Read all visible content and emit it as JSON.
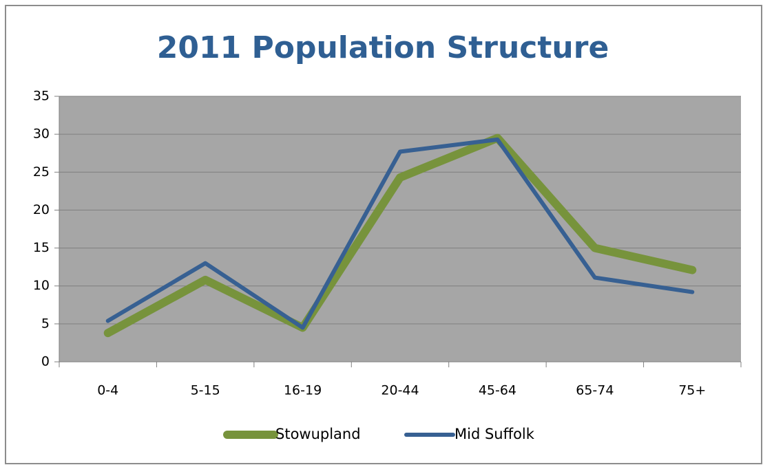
{
  "chart_data": {
    "type": "line",
    "title": "2011 Population Structure",
    "categories": [
      "0-4",
      "5-15",
      "16-19",
      "20-44",
      "45-64",
      "65-74",
      "75+"
    ],
    "series": [
      {
        "name": "Stowupland",
        "color": "#77933c",
        "values": [
          3.8,
          10.8,
          4.5,
          24.3,
          29.5,
          15.0,
          12.1
        ]
      },
      {
        "name": "Mid Suffolk",
        "color": "#376092",
        "values": [
          5.4,
          13.0,
          4.5,
          27.7,
          29.3,
          11.1,
          9.2
        ]
      }
    ],
    "ylim": [
      0,
      35
    ],
    "yticks": [
      0,
      5,
      10,
      15,
      20,
      25,
      30,
      35
    ],
    "grid": true,
    "legend": "bottom"
  }
}
